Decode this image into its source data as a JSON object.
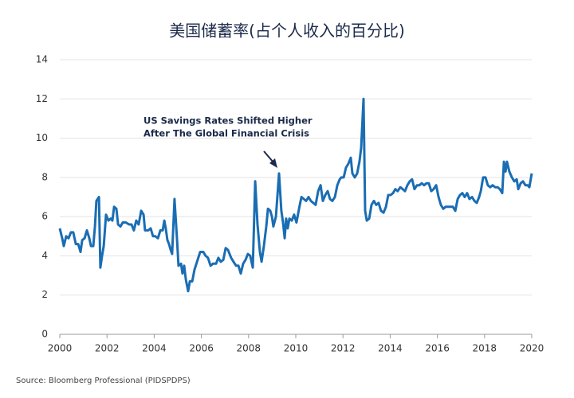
{
  "chart_data": {
    "type": "line",
    "title": "美国储蓄率(占个人收入的百分比)",
    "annotation": [
      "US Savings Rates Shifted Higher",
      "After The Global Financial Crisis"
    ],
    "source": "Source: Bloomberg Professional (PIDSPDPS)",
    "xlim": [
      2000,
      2020
    ],
    "xticks": [
      2000,
      2002,
      2004,
      2006,
      2008,
      2010,
      2012,
      2014,
      2016,
      2018,
      2020
    ],
    "ylim": [
      0,
      14
    ],
    "yticks": [
      0,
      2,
      4,
      6,
      8,
      10,
      12,
      14
    ],
    "grid": true,
    "series": [
      {
        "color": "#1a6db3",
        "x": [
          2000,
          2000.1,
          2000.17,
          2000.27,
          2000.37,
          2000.47,
          2000.57,
          2000.68,
          2000.78,
          2000.88,
          2000.95,
          2001.05,
          2001.15,
          2001.25,
          2001.32,
          2001.42,
          2001.49,
          2001.55,
          2001.66,
          2001.72,
          2001.79,
          2001.86,
          2001.96,
          2002.06,
          2002.16,
          2002.23,
          2002.3,
          2002.4,
          2002.47,
          2002.57,
          2002.67,
          2002.8,
          2002.94,
          2003.04,
          2003.14,
          2003.24,
          2003.34,
          2003.45,
          2003.55,
          2003.61,
          2003.75,
          2003.85,
          2003.95,
          2004.05,
          2004.16,
          2004.26,
          2004.36,
          2004.43,
          2004.49,
          2004.56,
          2004.63,
          2004.7,
          2004.76,
          2004.86,
          2004.97,
          2005.03,
          2005.14,
          2005.2,
          2005.27,
          2005.34,
          2005.44,
          2005.51,
          2005.61,
          2005.71,
          2005.84,
          2005.95,
          2006.08,
          2006.18,
          2006.28,
          2006.39,
          2006.49,
          2006.62,
          2006.72,
          2006.82,
          2006.93,
          2007.03,
          2007.13,
          2007.26,
          2007.36,
          2007.47,
          2007.57,
          2007.67,
          2007.77,
          2007.87,
          2007.97,
          2008.07,
          2008.18,
          2008.28,
          2008.38,
          2008.48,
          2008.55,
          2008.65,
          2008.75,
          2008.82,
          2008.92,
          2008.99,
          2009.05,
          2009.16,
          2009.22,
          2009.29,
          2009.39,
          2009.46,
          2009.53,
          2009.59,
          2009.66,
          2009.73,
          2009.83,
          2009.93,
          2010.03,
          2010.14,
          2010.24,
          2010.34,
          2010.44,
          2010.54,
          2010.64,
          2010.74,
          2010.84,
          2010.95,
          2011.05,
          2011.15,
          2011.25,
          2011.35,
          2011.45,
          2011.55,
          2011.66,
          2011.76,
          2011.86,
          2011.93,
          2012.03,
          2012.13,
          2012.23,
          2012.33,
          2012.4,
          2012.5,
          2012.6,
          2012.7,
          2012.77,
          2012.87,
          2012.94,
          2013.01,
          2013.11,
          2013.21,
          2013.31,
          2013.41,
          2013.51,
          2013.61,
          2013.72,
          2013.82,
          2013.92,
          2014.02,
          2014.12,
          2014.22,
          2014.32,
          2014.43,
          2014.53,
          2014.63,
          2014.73,
          2014.83,
          2014.93,
          2015.03,
          2015.14,
          2015.24,
          2015.34,
          2015.44,
          2015.54,
          2015.64,
          2015.74,
          2015.84,
          2015.95,
          2016.05,
          2016.15,
          2016.25,
          2016.35,
          2016.45,
          2016.55,
          2016.66,
          2016.76,
          2016.86,
          2016.96,
          2017.06,
          2017.16,
          2017.26,
          2017.36,
          2017.47,
          2017.57,
          2017.67,
          2017.77,
          2017.84,
          2017.94,
          2018.04,
          2018.14,
          2018.24,
          2018.34,
          2018.45,
          2018.55,
          2018.65,
          2018.75,
          2018.82,
          2018.89,
          2018.95,
          2019.05,
          2019.16,
          2019.26,
          2019.36,
          2019.43,
          2019.53,
          2019.63,
          2019.73,
          2019.83,
          2019.9,
          2020.0
        ],
        "values": [
          5.4,
          4.9,
          4.5,
          5.0,
          4.9,
          5.2,
          5.2,
          4.6,
          4.6,
          4.2,
          4.8,
          4.9,
          5.3,
          4.9,
          4.5,
          4.5,
          5.5,
          6.8,
          7.0,
          3.4,
          4.0,
          4.5,
          6.1,
          5.8,
          5.9,
          5.8,
          6.5,
          6.4,
          5.6,
          5.5,
          5.7,
          5.7,
          5.6,
          5.6,
          5.3,
          5.8,
          5.6,
          6.3,
          6.1,
          5.3,
          5.3,
          5.4,
          5.0,
          5.0,
          4.9,
          5.3,
          5.3,
          5.8,
          5.4,
          4.8,
          4.6,
          4.3,
          4.1,
          6.9,
          4.8,
          3.5,
          3.6,
          3.1,
          3.5,
          2.8,
          2.2,
          2.7,
          2.7,
          3.3,
          3.8,
          4.2,
          4.2,
          4.0,
          3.9,
          3.5,
          3.6,
          3.6,
          3.9,
          3.7,
          3.8,
          4.4,
          4.3,
          3.9,
          3.7,
          3.5,
          3.5,
          3.1,
          3.6,
          3.8,
          4.1,
          4.0,
          3.4,
          7.8,
          5.6,
          4.2,
          3.7,
          4.5,
          5.5,
          6.4,
          6.3,
          6.0,
          5.5,
          6.0,
          7.0,
          8.2,
          6.3,
          5.7,
          4.9,
          5.9,
          5.4,
          5.9,
          5.8,
          6.1,
          5.7,
          6.4,
          7.0,
          6.9,
          6.8,
          7.0,
          6.8,
          6.7,
          6.6,
          7.3,
          7.6,
          6.8,
          7.1,
          7.3,
          6.9,
          6.8,
          7.0,
          7.6,
          7.9,
          8.0,
          8.0,
          8.5,
          8.7,
          9.0,
          8.2,
          8.0,
          8.2,
          8.8,
          9.5,
          12.0,
          6.3,
          5.8,
          5.9,
          6.6,
          6.8,
          6.6,
          6.7,
          6.3,
          6.2,
          6.5,
          7.1,
          7.1,
          7.2,
          7.4,
          7.3,
          7.5,
          7.4,
          7.3,
          7.6,
          7.8,
          7.9,
          7.4,
          7.6,
          7.6,
          7.7,
          7.6,
          7.7,
          7.7,
          7.3,
          7.4,
          7.6,
          7.0,
          6.6,
          6.4,
          6.5,
          6.5,
          6.5,
          6.5,
          6.3,
          6.9,
          7.1,
          7.2,
          7.0,
          7.2,
          6.9,
          7.0,
          6.8,
          6.7,
          7.0,
          7.3,
          8.0,
          8.0,
          7.6,
          7.5,
          7.6,
          7.5,
          7.5,
          7.4,
          7.2,
          8.8,
          8.3,
          8.8,
          8.3,
          8.0,
          7.8,
          7.9,
          7.4,
          7.7,
          7.8,
          7.6,
          7.6,
          7.5,
          8.2
        ]
      }
    ]
  }
}
